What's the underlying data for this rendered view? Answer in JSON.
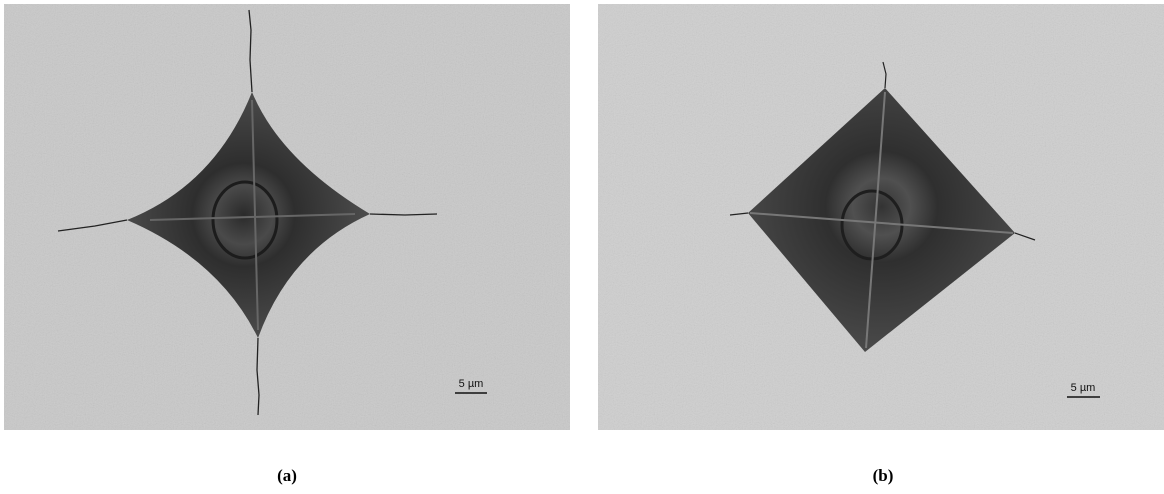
{
  "panels": [
    {
      "label": "(a)",
      "scale_bar": "5 µm"
    },
    {
      "label": "(b)",
      "scale_bar": "5 µm"
    }
  ]
}
